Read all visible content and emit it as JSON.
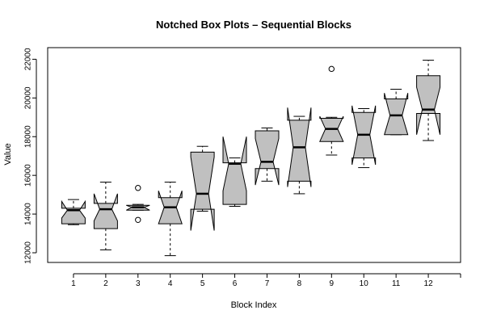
{
  "chart_data": {
    "type": "box",
    "title": "Notched Box Plots – Sequential Blocks",
    "xlabel": "Block Index",
    "ylabel": "Value",
    "ylim": [
      11500,
      22600
    ],
    "xlim": [
      0.2,
      13.0
    ],
    "yticks": [
      12000,
      14000,
      16000,
      18000,
      20000,
      22000
    ],
    "xticks": [
      1,
      2,
      3,
      4,
      5,
      6,
      7,
      8,
      9,
      10,
      11,
      12
    ],
    "xtick_labels": [
      "1",
      "2",
      "3",
      "4",
      "5",
      "6",
      "7",
      "8",
      "9",
      "10",
      "11",
      "12"
    ],
    "notched": true,
    "box_color": "#c0c0c0",
    "boxes": [
      {
        "x": 1,
        "whisker_low": 13450,
        "q1": 13500,
        "median": 14200,
        "q3": 14300,
        "whisker_high": 14750,
        "notch_low": 13800,
        "notch_high": 14650,
        "outliers": []
      },
      {
        "x": 2,
        "whisker_low": 12150,
        "q1": 13250,
        "median": 14250,
        "q3": 14550,
        "whisker_high": 15650,
        "notch_low": 13650,
        "notch_high": 15050,
        "outliers": []
      },
      {
        "x": 3,
        "whisker_low": 14200,
        "q1": 14200,
        "median": 14350,
        "q3": 14450,
        "whisker_high": 14500,
        "notch_low": 14200,
        "notch_high": 14450,
        "outliers": [
          13700,
          15350
        ]
      },
      {
        "x": 4,
        "whisker_low": 11850,
        "q1": 13500,
        "median": 14350,
        "q3": 14850,
        "whisker_high": 15650,
        "notch_low": 13500,
        "notch_high": 15200,
        "outliers": []
      },
      {
        "x": 5,
        "whisker_low": 14150,
        "q1": 14250,
        "median": 15050,
        "q3": 17200,
        "whisker_high": 17500,
        "notch_low": 13150,
        "notch_high": 16950,
        "outliers": []
      },
      {
        "x": 6,
        "whisker_low": 14400,
        "q1": 14500,
        "median": 16600,
        "q3": 16650,
        "whisker_high": 16900,
        "notch_low": 15200,
        "notch_high": 18000,
        "outliers": []
      },
      {
        "x": 7,
        "whisker_low": 15700,
        "q1": 16350,
        "median": 16700,
        "q3": 18300,
        "whisker_high": 18450,
        "notch_low": 15500,
        "notch_high": 17900,
        "outliers": []
      },
      {
        "x": 8,
        "whisker_low": 15050,
        "q1": 15700,
        "median": 17450,
        "q3": 18850,
        "whisker_high": 19050,
        "notch_low": 15400,
        "notch_high": 19500,
        "outliers": []
      },
      {
        "x": 9,
        "whisker_low": 17050,
        "q1": 17750,
        "median": 18400,
        "q3": 18950,
        "whisker_high": 19000,
        "notch_low": 17750,
        "notch_high": 19050,
        "outliers": [
          21500
        ]
      },
      {
        "x": 10,
        "whisker_low": 16400,
        "q1": 16900,
        "median": 18100,
        "q3": 19250,
        "whisker_high": 19450,
        "notch_low": 16550,
        "notch_high": 19600,
        "outliers": []
      },
      {
        "x": 11,
        "whisker_low": 18100,
        "q1": 18100,
        "median": 19100,
        "q3": 19950,
        "whisker_high": 20450,
        "notch_low": 18100,
        "notch_high": 20250,
        "outliers": []
      },
      {
        "x": 12,
        "whisker_low": 17800,
        "q1": 19200,
        "median": 19400,
        "q3": 21150,
        "whisker_high": 21950,
        "notch_low": 18100,
        "notch_high": 20550,
        "outliers": []
      }
    ]
  }
}
